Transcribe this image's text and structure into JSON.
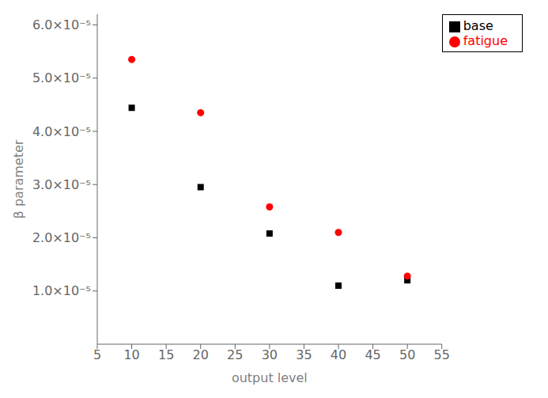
{
  "chart_data": {
    "type": "scatter",
    "xlabel": "output level",
    "ylabel": "β parameter",
    "x": [
      10,
      20,
      30,
      40,
      50
    ],
    "series": [
      {
        "name": "base",
        "color": "#000000",
        "marker": "square",
        "values": [
          4.44e-05,
          2.95e-05,
          2.08e-05,
          1.1e-05,
          1.2e-05
        ]
      },
      {
        "name": "fatigue",
        "color": "#ff0000",
        "marker": "circle",
        "values": [
          5.35e-05,
          4.35e-05,
          2.58e-05,
          2.1e-05,
          1.28e-05
        ]
      }
    ],
    "xlim": [
      5,
      55
    ],
    "xticks": [
      5,
      10,
      15,
      20,
      25,
      30,
      35,
      40,
      45,
      50,
      55
    ],
    "ylim": [
      0,
      6.2e-05
    ],
    "yticks": [
      {
        "value": 1e-05,
        "label": "1.0×10⁻⁵"
      },
      {
        "value": 2e-05,
        "label": "2.0×10⁻⁵"
      },
      {
        "value": 3e-05,
        "label": "3.0×10⁻⁵"
      },
      {
        "value": 4e-05,
        "label": "4.0×10⁻⁵"
      },
      {
        "value": 5e-05,
        "label": "5.0×10⁻⁵"
      },
      {
        "value": 6e-05,
        "label": "6.0×10⁻⁵"
      }
    ],
    "legend": "upper right",
    "grid": false
  }
}
